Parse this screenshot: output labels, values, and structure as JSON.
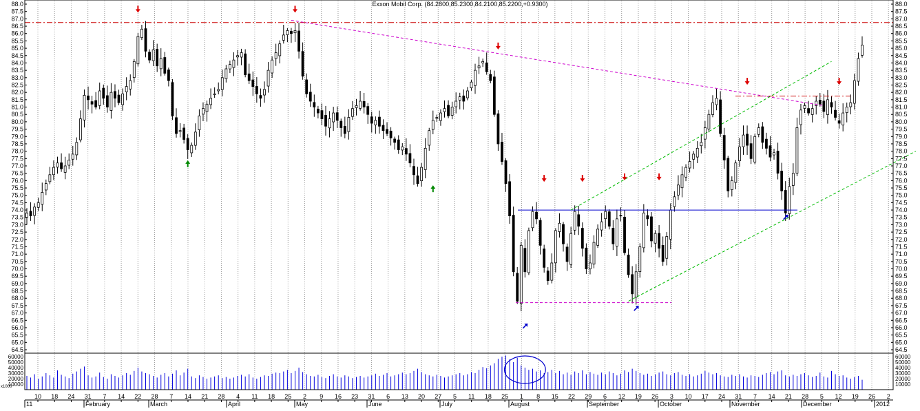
{
  "chart_data": {
    "type": "candlestick",
    "title": "Exxon Mobil Corp. (84.2800,85.2300,84.2100,85.2200,+0.9300)",
    "price_axis": {
      "min": 64.5,
      "max": 88.0,
      "step": 0.5,
      "tick_labels": [
        "64.5",
        "65.0",
        "65.5",
        "66.0",
        "66.5",
        "67.0",
        "67.5",
        "68.0",
        "68.5",
        "69.0",
        "69.5",
        "70.0",
        "70.5",
        "71.0",
        "71.5",
        "72.0",
        "72.5",
        "73.0",
        "73.5",
        "74.0",
        "74.5",
        "75.0",
        "75.5",
        "76.0",
        "76.5",
        "77.0",
        "77.5",
        "78.0",
        "78.5",
        "79.0",
        "79.5",
        "80.0",
        "80.5",
        "81.0",
        "81.5",
        "82.0",
        "82.5",
        "83.0",
        "83.5",
        "84.0",
        "84.5",
        "85.0",
        "85.5",
        "86.0",
        "86.5",
        "87.0",
        "87.5",
        "88.0"
      ]
    },
    "volume_axis": {
      "min": 0,
      "max": 60000,
      "tick_labels": [
        "60000",
        "50000",
        "40000",
        "30000",
        "20000",
        "10000"
      ],
      "unit_label": "x1000"
    },
    "day_ticks": [
      "10",
      "18",
      "24",
      "31",
      "7",
      "14",
      "22",
      "28",
      "7",
      "14",
      "21",
      "28",
      "4",
      "11",
      "18",
      "25",
      "2",
      "9",
      "16",
      "23",
      "31",
      "6",
      "13",
      "20",
      "27",
      "5",
      "11",
      "18",
      "25",
      "1",
      "8",
      "15",
      "22",
      "29",
      "6",
      "12",
      "19",
      "26",
      "3",
      "10",
      "17",
      "24",
      "31",
      "7",
      "14",
      "21",
      "28",
      "5",
      "12",
      "19",
      "26",
      "2"
    ],
    "month_labels": [
      "11",
      "February",
      "March",
      "April",
      "May",
      "June",
      "July",
      "August",
      "September",
      "October",
      "November",
      "December",
      "2012"
    ],
    "closes": [
      73.8,
      73.6,
      74.2,
      74.5,
      75.2,
      75.8,
      76.4,
      76.9,
      77.2,
      76.8,
      77.0,
      77.4,
      77.8,
      78.6,
      80.2,
      81.8,
      81.5,
      81.2,
      81.0,
      82.1,
      81.6,
      81.0,
      82.0,
      81.6,
      81.3,
      81.9,
      82.4,
      82.8,
      84.1,
      85.8,
      86.3,
      84.8,
      84.2,
      84.9,
      83.8,
      84.3,
      83.3,
      82.8,
      80.4,
      79.2,
      79.4,
      78.8,
      78.1,
      78.4,
      79.3,
      80.4,
      80.9,
      81.2,
      81.6,
      81.9,
      82.2,
      83.0,
      83.6,
      83.9,
      84.2,
      84.5,
      84.7,
      83.2,
      82.8,
      82.4,
      81.9,
      81.6,
      82.2,
      83.5,
      84.2,
      84.7,
      85.3,
      85.9,
      86.2,
      86.0,
      86.2,
      84.8,
      83.1,
      81.9,
      81.4,
      81.0,
      80.6,
      80.2,
      79.7,
      80.2,
      80.6,
      80.1,
      79.6,
      79.2,
      80.3,
      80.9,
      81.1,
      81.4,
      81.0,
      80.5,
      79.9,
      80.1,
      79.7,
      79.4,
      79.2,
      78.9,
      78.6,
      78.1,
      78.3,
      77.8,
      77.2,
      76.4,
      75.8,
      76.9,
      78.2,
      79.4,
      80.1,
      80.3,
      80.6,
      80.9,
      80.4,
      81.0,
      81.4,
      81.7,
      81.4,
      82.1,
      82.7,
      83.5,
      83.8,
      84.1,
      83.4,
      82.8,
      80.5,
      78.5,
      77.3,
      75.8,
      73.6,
      69.8,
      67.8,
      71.6,
      69.8,
      72.6,
      73.9,
      73.4,
      71.6,
      70.1,
      69.2,
      70.4,
      72.6,
      73.1,
      71.7,
      70.5,
      72.4,
      73.9,
      72.9,
      71.4,
      70.0,
      70.4,
      71.8,
      72.7,
      73.2,
      73.9,
      72.9,
      71.7,
      73.4,
      73.6,
      71.1,
      69.6,
      68.3,
      69.8,
      71.5,
      73.8,
      73.4,
      71.9,
      72.4,
      71.4,
      70.5,
      72.2,
      74.0,
      74.9,
      75.7,
      76.4,
      76.9,
      77.3,
      77.8,
      78.2,
      78.6,
      79.6,
      80.5,
      81.3,
      81.6,
      79.2,
      77.4,
      75.3,
      76.0,
      77.2,
      78.3,
      79.1,
      78.4,
      77.5,
      79.0,
      79.6,
      78.6,
      78.2,
      77.6,
      77.9,
      76.5,
      75.3,
      73.8,
      75.6,
      76.5,
      79.6,
      80.8,
      81.1,
      80.6,
      80.9,
      81.4,
      81.2,
      80.7,
      81.5,
      81.0,
      80.3,
      79.9,
      80.6,
      81.0,
      81.3,
      82.8,
      84.3,
      85.22
    ],
    "volume": [
      25000,
      22000,
      28000,
      20000,
      24000,
      30000,
      26000,
      22000,
      35000,
      27000,
      24000,
      21000,
      29000,
      33000,
      38000,
      42000,
      26000,
      22000,
      24000,
      31000,
      23000,
      20000,
      28000,
      25000,
      22000,
      26000,
      30000,
      27000,
      34000,
      40000,
      33000,
      30000,
      28000,
      25000,
      22000,
      27000,
      30000,
      24000,
      29000,
      35000,
      26000,
      31000,
      38000,
      24000,
      21000,
      26000,
      23000,
      20000,
      22000,
      24000,
      26000,
      21000,
      23000,
      20000,
      22000,
      25000,
      27000,
      24000,
      28000,
      22000,
      20000,
      23000,
      26000,
      25000,
      29000,
      31000,
      30000,
      33000,
      36000,
      30000,
      34000,
      40000,
      32000,
      28000,
      25000,
      24000,
      27000,
      23000,
      21000,
      25000,
      28000,
      24000,
      22000,
      26000,
      24000,
      21000,
      23000,
      25000,
      22000,
      24000,
      26000,
      29000,
      25000,
      27000,
      30000,
      24000,
      26000,
      28000,
      31000,
      28000,
      30000,
      34000,
      38000,
      32000,
      28000,
      26000,
      24000,
      27000,
      25000,
      22000,
      24000,
      26000,
      28000,
      30000,
      26000,
      28000,
      32000,
      30000,
      36000,
      41000,
      39000,
      44000,
      48000,
      56000,
      60000,
      62000,
      55000,
      50000,
      58000,
      44000,
      40000,
      36000,
      38000,
      33000,
      35000,
      30000,
      32000,
      36000,
      30000,
      34000,
      28000,
      31000,
      27000,
      33000,
      30000,
      35000,
      28000,
      32000,
      29000,
      27000,
      31000,
      28000,
      33000,
      30000,
      26000,
      29000,
      35000,
      32000,
      38000,
      34000,
      30000,
      27000,
      29000,
      25000,
      28000,
      31000,
      33000,
      28000,
      26000,
      30000,
      32000,
      27000,
      25000,
      28000,
      24000,
      26000,
      29000,
      34000,
      31000,
      28000,
      30000,
      26000,
      24000,
      23000,
      27000,
      25000,
      28000,
      24000,
      22000,
      26000,
      25000,
      23000,
      27000,
      30000,
      32000,
      28000,
      33000,
      35000,
      26000,
      24000,
      27000,
      25000,
      28000,
      30000,
      26000,
      23000,
      25000,
      31000,
      24000,
      22000,
      34000,
      28000,
      25000,
      26000,
      22000,
      20000,
      23000,
      25000,
      18000
    ],
    "horizontal_lines": [
      {
        "name": "resistance-86.75",
        "value": 86.75,
        "style": "dash-dot",
        "color": "#cc0000"
      },
      {
        "name": "support-74.0",
        "value": 74.0,
        "style": "solid",
        "color": "#0000cc"
      },
      {
        "name": "low-67.7",
        "value": 67.7,
        "style": "dashed",
        "color": "#cc00cc"
      },
      {
        "name": "resistance-81.75",
        "value": 81.75,
        "style": "dash-dot",
        "color": "#cc0000"
      }
    ],
    "trend_lines": [
      {
        "name": "downtrend",
        "points": [
          [
            69,
            86.9
          ],
          [
            208,
            81.1
          ]
        ],
        "color": "#cc00cc",
        "style": "dashed"
      },
      {
        "name": "channel-upper",
        "points": [
          [
            142,
            74.0
          ],
          [
            210,
            84.1
          ]
        ],
        "color": "#00bb00",
        "style": "dashed"
      },
      {
        "name": "channel-lower",
        "points": [
          [
            157,
            67.8
          ],
          [
            232,
            78.0
          ]
        ],
        "color": "#00bb00",
        "style": "dashed"
      }
    ],
    "markers": [
      {
        "type": "down-arrow",
        "bar": 29,
        "value": 87.7,
        "color": "#dd0000"
      },
      {
        "type": "down-arrow",
        "bar": 70,
        "value": 87.7,
        "color": "#dd0000"
      },
      {
        "type": "down-arrow",
        "bar": 123,
        "value": 85.2,
        "color": "#dd0000"
      },
      {
        "type": "down-arrow",
        "bar": 135,
        "value": 76.2,
        "color": "#dd0000"
      },
      {
        "type": "down-arrow",
        "bar": 145,
        "value": 76.2,
        "color": "#dd0000"
      },
      {
        "type": "down-arrow",
        "bar": 156,
        "value": 76.3,
        "color": "#dd0000"
      },
      {
        "type": "down-arrow",
        "bar": 165,
        "value": 76.3,
        "color": "#dd0000"
      },
      {
        "type": "down-arrow",
        "bar": 188,
        "value": 82.8,
        "color": "#dd0000"
      },
      {
        "type": "down-arrow",
        "bar": 212,
        "value": 82.8,
        "color": "#dd0000"
      },
      {
        "type": "up-arrow",
        "bar": 42,
        "value": 77.1,
        "color": "#008800"
      },
      {
        "type": "up-arrow",
        "bar": 106,
        "value": 75.4,
        "color": "#008800"
      },
      {
        "type": "up-arrow-diag",
        "bar": 130,
        "value": 66.1,
        "color": "#0000cc"
      },
      {
        "type": "up-arrow-diag",
        "bar": 159,
        "value": 67.3,
        "color": "#0000cc"
      },
      {
        "type": "up-arrow-diag",
        "bar": 198,
        "value": 73.5,
        "color": "#0000cc"
      }
    ],
    "highlights": [
      {
        "type": "ellipse",
        "panel": "volume",
        "bar_from": 125,
        "bar_to": 135
      }
    ]
  }
}
